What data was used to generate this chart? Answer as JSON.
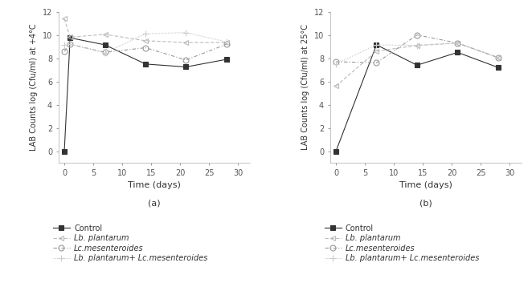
{
  "panel_a": {
    "ylabel": "LAB Counts log (Cfu/ml) at +4°C",
    "xlabel": "Time (days)",
    "subtitle": "(a)",
    "series": {
      "control": {
        "x": [
          0,
          1,
          7,
          14,
          21,
          28
        ],
        "y": [
          0.0,
          9.75,
          9.15,
          7.5,
          7.25,
          7.9
        ],
        "color": "#333333",
        "marker": "s",
        "linestyle": "-",
        "markerfacecolor": "#333333",
        "markeredgecolor": "#333333",
        "markersize": 5,
        "label": "Control"
      },
      "lb_plantarum": {
        "x": [
          0,
          1,
          7,
          14,
          21,
          28
        ],
        "y": [
          11.4,
          9.8,
          10.05,
          9.5,
          9.35,
          9.35
        ],
        "color": "#bbbbbb",
        "marker": "<",
        "linestyle": "--",
        "markerfacecolor": "none",
        "markeredgecolor": "#bbbbbb",
        "markersize": 5,
        "label": "Lb. plantarum"
      },
      "lc_mesenteroides": {
        "x": [
          0,
          1,
          7,
          14,
          21,
          28
        ],
        "y": [
          8.6,
          9.2,
          8.5,
          8.9,
          7.85,
          9.2
        ],
        "color": "#999999",
        "marker": "o",
        "linestyle": "--",
        "markerfacecolor": "none",
        "markeredgecolor": "#999999",
        "markersize": 5,
        "label": "Lc.mesenteroides"
      },
      "lb_lc": {
        "x": [
          0,
          1,
          7,
          14,
          21,
          28
        ],
        "y": [
          9.15,
          9.2,
          8.45,
          10.1,
          10.2,
          9.4
        ],
        "color": "#cccccc",
        "marker": "+",
        "linestyle": "--",
        "markerfacecolor": "#cccccc",
        "markeredgecolor": "#cccccc",
        "markersize": 6,
        "label": "Lb. plantarum+ Lc.mesenteroides"
      }
    },
    "ylim": [
      -1,
      12
    ],
    "xlim": [
      -1,
      32
    ],
    "yticks": [
      0,
      2,
      4,
      6,
      8,
      10,
      12
    ],
    "xticks": [
      0,
      5,
      10,
      15,
      20,
      25,
      30
    ]
  },
  "panel_b": {
    "ylabel": "LAB Counts log (Cfu/ml) at 25°C",
    "xlabel": "Time (days)",
    "subtitle": "(b)",
    "series": {
      "control": {
        "x": [
          0,
          7,
          14,
          21,
          28
        ],
        "y": [
          0.0,
          9.15,
          7.4,
          8.5,
          7.2
        ],
        "color": "#333333",
        "marker": "s",
        "linestyle": "-",
        "markerfacecolor": "#333333",
        "markeredgecolor": "#333333",
        "markersize": 5,
        "label": "Control"
      },
      "lb_plantarum": {
        "x": [
          0,
          7,
          14,
          21,
          28
        ],
        "y": [
          5.6,
          8.6,
          9.1,
          9.3,
          8.05
        ],
        "color": "#bbbbbb",
        "marker": "<",
        "linestyle": "--",
        "markerfacecolor": "none",
        "markeredgecolor": "#bbbbbb",
        "markersize": 5,
        "label": "Lb. plantarum"
      },
      "lc_mesenteroides": {
        "x": [
          0,
          7,
          14,
          21,
          28
        ],
        "y": [
          7.7,
          7.6,
          10.0,
          9.3,
          8.05
        ],
        "color": "#999999",
        "marker": "o",
        "linestyle": "--",
        "markerfacecolor": "none",
        "markeredgecolor": "#999999",
        "markersize": 5,
        "label": "Lc.mesenteroides"
      },
      "lb_lc": {
        "x": [
          0,
          7,
          14,
          21,
          28
        ],
        "y": [
          7.5,
          9.15,
          9.1,
          9.3,
          8.05
        ],
        "color": "#cccccc",
        "marker": "+",
        "linestyle": "--",
        "markerfacecolor": "#cccccc",
        "markeredgecolor": "#cccccc",
        "markersize": 6,
        "label": "Lb. plantarum+ Lc.mesenteroides"
      }
    },
    "ylim": [
      -1,
      12
    ],
    "xlim": [
      -1,
      32
    ],
    "yticks": [
      0,
      2,
      4,
      6,
      8,
      10,
      12
    ],
    "xticks": [
      0,
      5,
      10,
      15,
      20,
      25,
      30
    ]
  },
  "background_color": "#ffffff",
  "linewidth": 0.8,
  "fontsize": 7
}
